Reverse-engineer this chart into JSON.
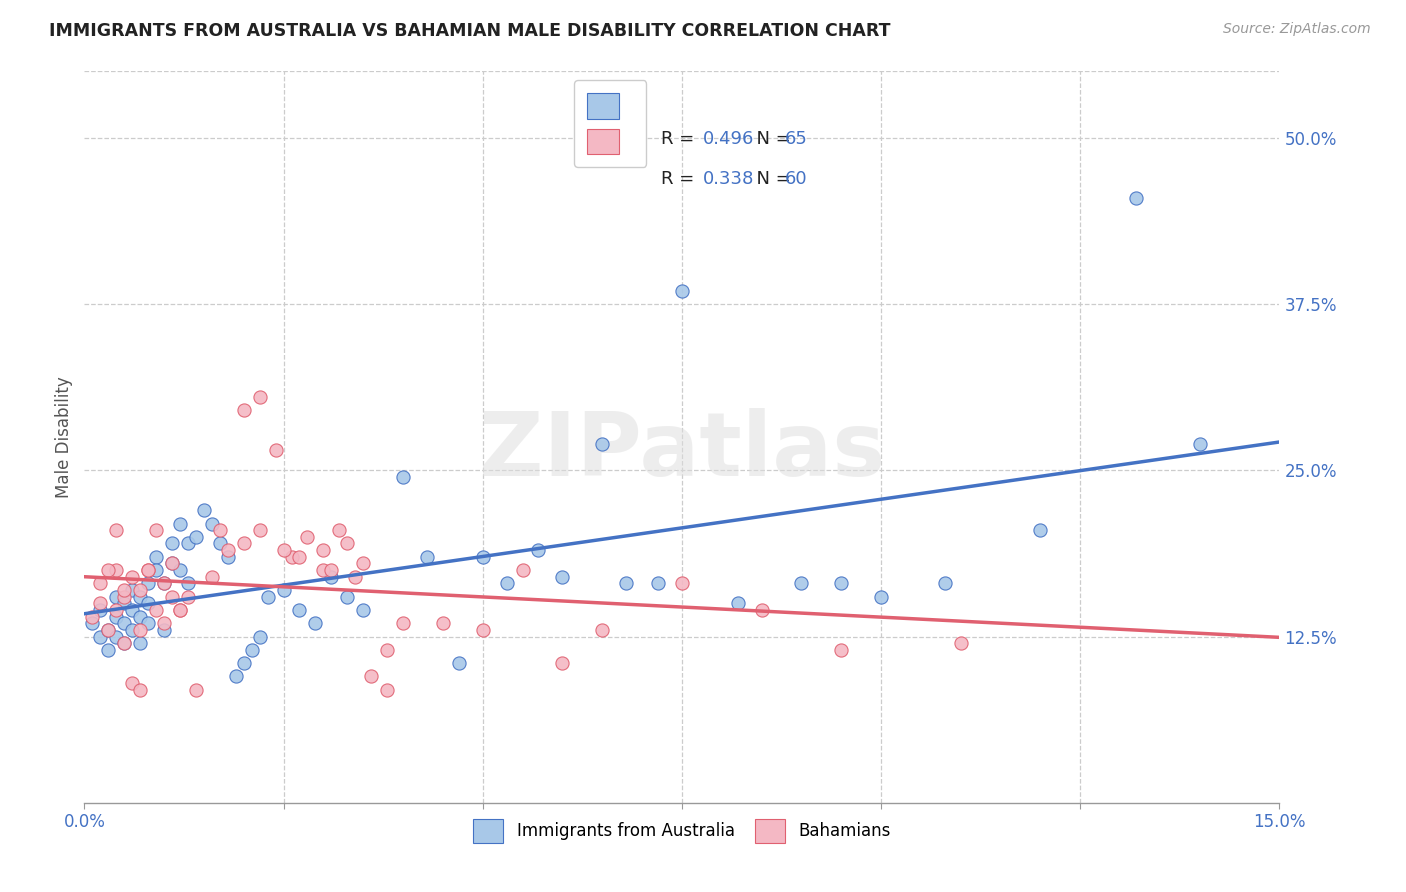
{
  "title": "IMMIGRANTS FROM AUSTRALIA VS BAHAMIAN MALE DISABILITY CORRELATION CHART",
  "source": "Source: ZipAtlas.com",
  "ylabel_label": "Male Disability",
  "legend_label1": "Immigrants from Australia",
  "legend_label2": "Bahamians",
  "R1": 0.496,
  "N1": 65,
  "R2": 0.338,
  "N2": 60,
  "color1": "#a8c8e8",
  "color2": "#f4b8c4",
  "line_color1": "#4472c4",
  "line_color2": "#e06070",
  "xlim": [
    0.0,
    0.15
  ],
  "ylim": [
    0.0,
    0.55
  ],
  "xticks": [
    0.0,
    0.025,
    0.05,
    0.075,
    0.1,
    0.125,
    0.15
  ],
  "yticks_right": [
    0.125,
    0.25,
    0.375,
    0.5
  ],
  "xtick_labels_show": [
    "0.0%",
    "",
    "",
    "",
    "",
    "",
    "15.0%"
  ],
  "ytick_labels": [
    "12.5%",
    "25.0%",
    "37.5%",
    "50.0%"
  ],
  "watermark": "ZIPatlas",
  "background_color": "#ffffff",
  "grid_color": "#cccccc",
  "scatter1_x": [
    0.001,
    0.002,
    0.002,
    0.003,
    0.003,
    0.004,
    0.004,
    0.004,
    0.005,
    0.005,
    0.005,
    0.006,
    0.006,
    0.006,
    0.007,
    0.007,
    0.007,
    0.008,
    0.008,
    0.008,
    0.009,
    0.009,
    0.01,
    0.01,
    0.011,
    0.011,
    0.012,
    0.012,
    0.013,
    0.013,
    0.014,
    0.015,
    0.016,
    0.017,
    0.018,
    0.019,
    0.02,
    0.021,
    0.022,
    0.023,
    0.025,
    0.027,
    0.029,
    0.031,
    0.033,
    0.035,
    0.04,
    0.043,
    0.047,
    0.05,
    0.053,
    0.057,
    0.06,
    0.065,
    0.068,
    0.072,
    0.075,
    0.082,
    0.09,
    0.095,
    0.1,
    0.108,
    0.12,
    0.132,
    0.14
  ],
  "scatter1_y": [
    0.135,
    0.125,
    0.145,
    0.115,
    0.13,
    0.125,
    0.14,
    0.155,
    0.12,
    0.135,
    0.15,
    0.13,
    0.145,
    0.16,
    0.12,
    0.14,
    0.155,
    0.135,
    0.15,
    0.165,
    0.185,
    0.175,
    0.165,
    0.13,
    0.195,
    0.18,
    0.21,
    0.175,
    0.195,
    0.165,
    0.2,
    0.22,
    0.21,
    0.195,
    0.185,
    0.095,
    0.105,
    0.115,
    0.125,
    0.155,
    0.16,
    0.145,
    0.135,
    0.17,
    0.155,
    0.145,
    0.245,
    0.185,
    0.105,
    0.185,
    0.165,
    0.19,
    0.17,
    0.27,
    0.165,
    0.165,
    0.385,
    0.15,
    0.165,
    0.165,
    0.155,
    0.165,
    0.205,
    0.455,
    0.27
  ],
  "scatter2_x": [
    0.001,
    0.002,
    0.002,
    0.003,
    0.004,
    0.004,
    0.005,
    0.005,
    0.006,
    0.007,
    0.007,
    0.008,
    0.009,
    0.01,
    0.011,
    0.012,
    0.013,
    0.014,
    0.016,
    0.017,
    0.018,
    0.02,
    0.022,
    0.024,
    0.026,
    0.028,
    0.03,
    0.031,
    0.033,
    0.035,
    0.038,
    0.03,
    0.032,
    0.034,
    0.036,
    0.038,
    0.02,
    0.022,
    0.025,
    0.027,
    0.04,
    0.045,
    0.05,
    0.055,
    0.06,
    0.065,
    0.075,
    0.085,
    0.095,
    0.11,
    0.003,
    0.004,
    0.005,
    0.006,
    0.007,
    0.008,
    0.009,
    0.01,
    0.011,
    0.012
  ],
  "scatter2_y": [
    0.14,
    0.15,
    0.165,
    0.13,
    0.145,
    0.175,
    0.12,
    0.155,
    0.17,
    0.16,
    0.13,
    0.175,
    0.145,
    0.135,
    0.155,
    0.145,
    0.155,
    0.085,
    0.17,
    0.205,
    0.19,
    0.295,
    0.305,
    0.265,
    0.185,
    0.2,
    0.175,
    0.175,
    0.195,
    0.18,
    0.115,
    0.19,
    0.205,
    0.17,
    0.095,
    0.085,
    0.195,
    0.205,
    0.19,
    0.185,
    0.135,
    0.135,
    0.13,
    0.175,
    0.105,
    0.13,
    0.165,
    0.145,
    0.115,
    0.12,
    0.175,
    0.205,
    0.16,
    0.09,
    0.085,
    0.175,
    0.205,
    0.165,
    0.18,
    0.145
  ]
}
